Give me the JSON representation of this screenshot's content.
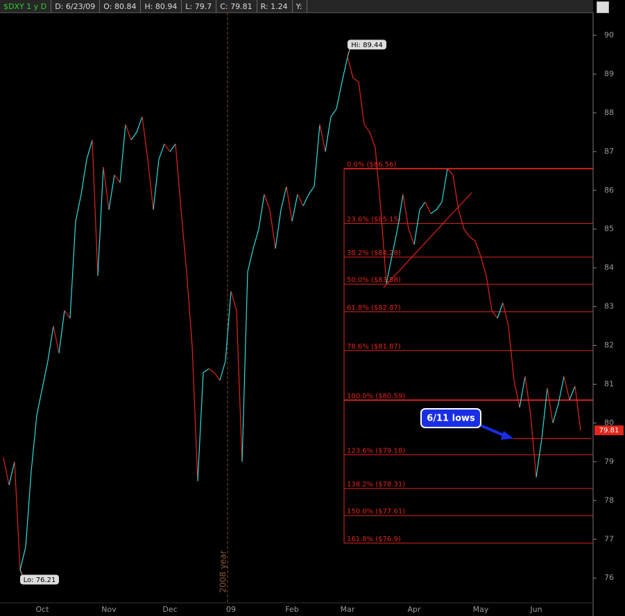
{
  "chart_data": {
    "type": "line",
    "header": [
      "$DXY 1 y D",
      "D: 6/23/09",
      "O: 80.84",
      "H: 80.94",
      "L: 79.7",
      "C: 79.81",
      "R: 1.24",
      "Y:"
    ],
    "categories": [
      null,
      null,
      null,
      null,
      null,
      null,
      null,
      "Oct",
      null,
      null,
      null,
      null,
      null,
      null,
      null,
      null,
      null,
      null,
      null,
      "Nov",
      null,
      null,
      null,
      null,
      null,
      null,
      null,
      null,
      null,
      null,
      "Dec",
      null,
      null,
      null,
      null,
      null,
      null,
      null,
      null,
      null,
      null,
      "09",
      null,
      null,
      null,
      null,
      null,
      null,
      null,
      null,
      null,
      null,
      "Feb",
      null,
      null,
      null,
      null,
      null,
      null,
      null,
      null,
      null,
      "Mar",
      null,
      null,
      null,
      null,
      null,
      null,
      null,
      null,
      null,
      null,
      null,
      "Apr",
      null,
      null,
      null,
      null,
      null,
      null,
      null,
      null,
      null,
      null,
      null,
      "May",
      null,
      null,
      null,
      null,
      null,
      null,
      null,
      null,
      null,
      "Jun",
      null,
      null,
      null,
      null,
      null,
      null,
      null,
      null
    ],
    "values": [
      79.1,
      78.4,
      79.0,
      76.21,
      76.8,
      78.75,
      80.2,
      80.9,
      81.6,
      82.5,
      81.8,
      82.9,
      82.7,
      85.2,
      85.9,
      86.8,
      87.3,
      83.8,
      86.6,
      85.5,
      86.4,
      86.2,
      87.7,
      87.3,
      87.5,
      87.9,
      86.8,
      85.5,
      86.8,
      87.2,
      87.0,
      87.2,
      85.5,
      83.9,
      82.0,
      78.5,
      81.3,
      81.4,
      81.3,
      81.1,
      81.6,
      83.4,
      82.9,
      79.0,
      83.9,
      84.5,
      85.0,
      85.9,
      85.5,
      84.5,
      85.5,
      86.1,
      85.2,
      85.9,
      85.6,
      85.9,
      86.1,
      87.7,
      87.0,
      87.9,
      88.1,
      88.8,
      89.44,
      88.9,
      88.8,
      87.7,
      87.5,
      87.1,
      85.5,
      83.6,
      84.3,
      85.0,
      85.9,
      85.0,
      84.6,
      85.5,
      85.7,
      85.4,
      85.5,
      85.7,
      86.56,
      86.4,
      85.5,
      85.0,
      84.8,
      84.7,
      84.3,
      83.8,
      82.9,
      82.7,
      83.1,
      82.5,
      81.1,
      80.4,
      81.2,
      80.2,
      78.6,
      79.6,
      80.9,
      80.0,
      80.5,
      81.2,
      80.6,
      80.95,
      79.81
    ],
    "up_color": "#2fe0e0",
    "down_color": "#e3261c",
    "hi_label": "Hi: 89.44",
    "lo_label": "Lo: 76.21",
    "last": 79.81,
    "ylim": [
      75.36,
      90.59
    ],
    "yticks": [
      76,
      77,
      78,
      79,
      80,
      81,
      82,
      83,
      84,
      85,
      86,
      87,
      88,
      89,
      90
    ],
    "fib_levels": [
      {
        "value": 86.56,
        "label": "0.0% ($86.56)"
      },
      {
        "value": 85.15,
        "label": "23.6% ($85.15)"
      },
      {
        "value": 84.28,
        "label": "38.2% ($84.28)"
      },
      {
        "value": 83.58,
        "label": "50.0% ($83.58)"
      },
      {
        "value": 82.87,
        "label": "61.8% ($82.87)"
      },
      {
        "value": 81.87,
        "label": "78.6% ($81.87)"
      },
      {
        "value": 80.59,
        "label": "100.0% ($80.59)"
      },
      {
        "value": 79.18,
        "label": "123.6% ($79.18)"
      },
      {
        "value": 78.31,
        "label": "138.2% ($78.31)"
      },
      {
        "value": 77.61,
        "label": "150.0% ($77.61)"
      },
      {
        "value": 76.9,
        "label": "161.8% ($76.9)"
      }
    ],
    "fib_color": "#e3261c",
    "annotation": {
      "text": "6/11 lows",
      "value": 79.6
    },
    "year_marker": "2008 year"
  }
}
